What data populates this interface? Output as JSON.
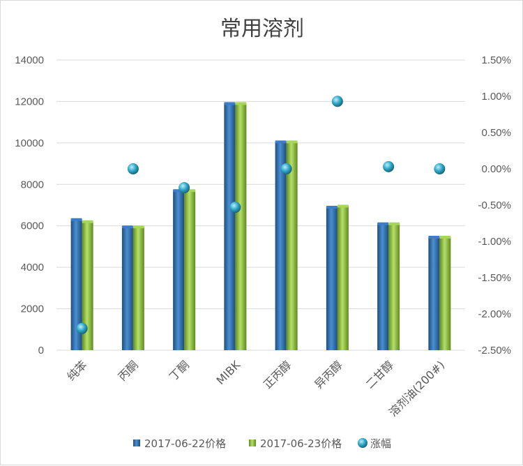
{
  "chart_data": {
    "type": "bar",
    "title": "常用溶剂",
    "categories": [
      "纯苯",
      "丙酮",
      "丁酮",
      "MIBK",
      "正丙醇",
      "异丙醇",
      "二甘醇",
      "溶剂油(200#)"
    ],
    "series": [
      {
        "name": "2017-06-22价格",
        "type": "bar",
        "axis": "left",
        "color": "#2e75b6",
        "values": [
          6300,
          5950,
          7700,
          11900,
          10050,
          6900,
          6100,
          5450
        ]
      },
      {
        "name": "2017-06-23价格",
        "type": "bar",
        "axis": "left",
        "color": "#92d050",
        "values": [
          6200,
          5950,
          7700,
          11900,
          10050,
          6950,
          6100,
          5450
        ]
      },
      {
        "name": "涨幅",
        "type": "scatter",
        "axis": "right",
        "color": "#31a9c9",
        "values": [
          -2.2,
          0.0,
          -0.26,
          -0.53,
          0.0,
          0.93,
          0.03,
          0.0
        ]
      }
    ],
    "y_left": {
      "min": 0,
      "max": 14000,
      "ticks": [
        "0",
        "2000",
        "4000",
        "6000",
        "8000",
        "10000",
        "12000",
        "14000"
      ]
    },
    "y_right": {
      "min": -2.5,
      "max": 1.5,
      "ticks": [
        "-2.50%",
        "-2.00%",
        "-1.50%",
        "-1.00%",
        "-0.50%",
        "0.00%",
        "0.50%",
        "1.00%",
        "1.50%"
      ]
    },
    "grid": true,
    "legend_position": "bottom"
  }
}
